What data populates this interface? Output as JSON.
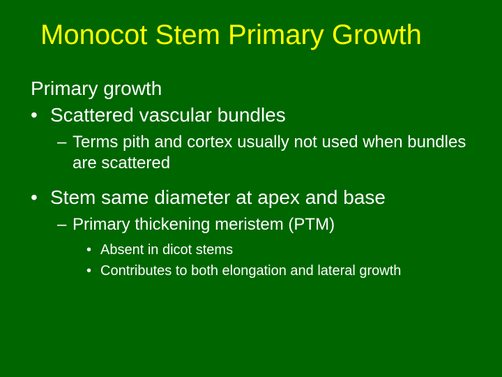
{
  "colors": {
    "background": "#006600",
    "title": "#ffff00",
    "body": "#ffffff"
  },
  "typography": {
    "family": "Arial",
    "title_size": 40,
    "level1_size": 28,
    "level2_size": 24,
    "level3_size": 20
  },
  "title": "Monocot Stem Primary Growth",
  "content": {
    "heading": "Primary growth",
    "bullet1": {
      "text": "Scattered vascular bundles",
      "sub1": "Terms pith and cortex usually not used when bundles are scattered"
    },
    "bullet2": {
      "text": "Stem same diameter at apex and base",
      "sub1": "Primary thickening meristem (PTM)",
      "subsub1": "Absent in dicot stems",
      "subsub2": "Contributes to both elongation and lateral growth"
    }
  }
}
